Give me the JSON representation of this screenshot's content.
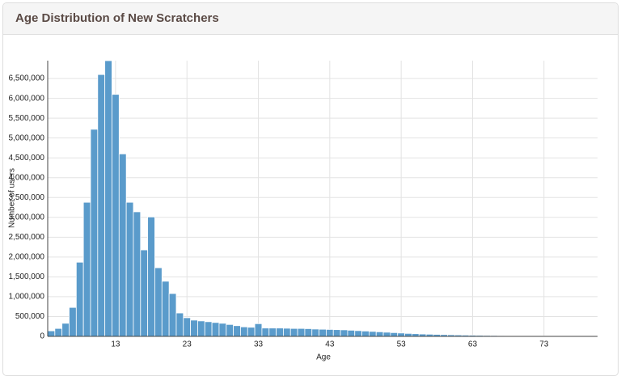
{
  "chart_data": {
    "type": "bar",
    "title": "Age Distribution of New Scratchers",
    "x_label": "Age",
    "y_label": "Number of users",
    "color": "#5a9bcb",
    "grid": true,
    "x": [
      4,
      5,
      6,
      7,
      8,
      9,
      10,
      11,
      12,
      13,
      14,
      15,
      16,
      17,
      18,
      19,
      20,
      21,
      22,
      23,
      24,
      25,
      26,
      27,
      28,
      29,
      30,
      31,
      32,
      33,
      34,
      35,
      36,
      37,
      38,
      39,
      40,
      41,
      42,
      43,
      44,
      45,
      46,
      47,
      48,
      49,
      50,
      51,
      52,
      53,
      54,
      55,
      56,
      57,
      58,
      59,
      60,
      61,
      62,
      63,
      64,
      65,
      66,
      67,
      68,
      69,
      70,
      71,
      72,
      73,
      74,
      75,
      76,
      77,
      78,
      79,
      80
    ],
    "values": [
      140000,
      200000,
      330000,
      730000,
      1870000,
      3380000,
      5220000,
      6600000,
      6950000,
      6100000,
      4600000,
      3380000,
      3140000,
      2180000,
      3010000,
      1730000,
      1390000,
      1080000,
      590000,
      470000,
      410000,
      390000,
      370000,
      350000,
      330000,
      300000,
      270000,
      240000,
      230000,
      320000,
      210000,
      210000,
      210000,
      205000,
      200000,
      200000,
      195000,
      185000,
      180000,
      175000,
      170000,
      165000,
      155000,
      145000,
      135000,
      125000,
      115000,
      105000,
      95000,
      85000,
      75000,
      68000,
      60000,
      55000,
      50000,
      45000,
      40000,
      36000,
      32000,
      29000,
      26000,
      23000,
      21000,
      19000,
      17000,
      15000,
      14000,
      13000,
      12000,
      11000,
      10000,
      9000,
      8000,
      7000,
      6000,
      5000,
      5000
    ],
    "xlim": [
      3.5,
      80.5
    ],
    "xticks": [
      13,
      23,
      33,
      43,
      53,
      63,
      73
    ],
    "ylim": [
      0,
      6950000
    ],
    "yticks": [
      0,
      {
        "value": 500000,
        "label": "500,000"
      },
      {
        "value": 1000000,
        "label": "1,000,000"
      },
      {
        "value": 1500000,
        "label": "1,500,000"
      },
      {
        "value": 2000000,
        "label": "2,000,000"
      },
      {
        "value": 2500000,
        "label": "2,500,000"
      },
      {
        "value": 3000000,
        "label": "3,000,000"
      },
      {
        "value": 3500000,
        "label": "3,500,000"
      },
      {
        "value": 4000000,
        "label": "4,000,000"
      },
      {
        "value": 4500000,
        "label": "4,500,000"
      },
      {
        "value": 5000000,
        "label": "5,000,000"
      },
      {
        "value": 5500000,
        "label": "5,500,000"
      },
      {
        "value": 6000000,
        "label": "6,000,000"
      },
      {
        "value": 6500000,
        "label": "6,500,000"
      }
    ]
  }
}
